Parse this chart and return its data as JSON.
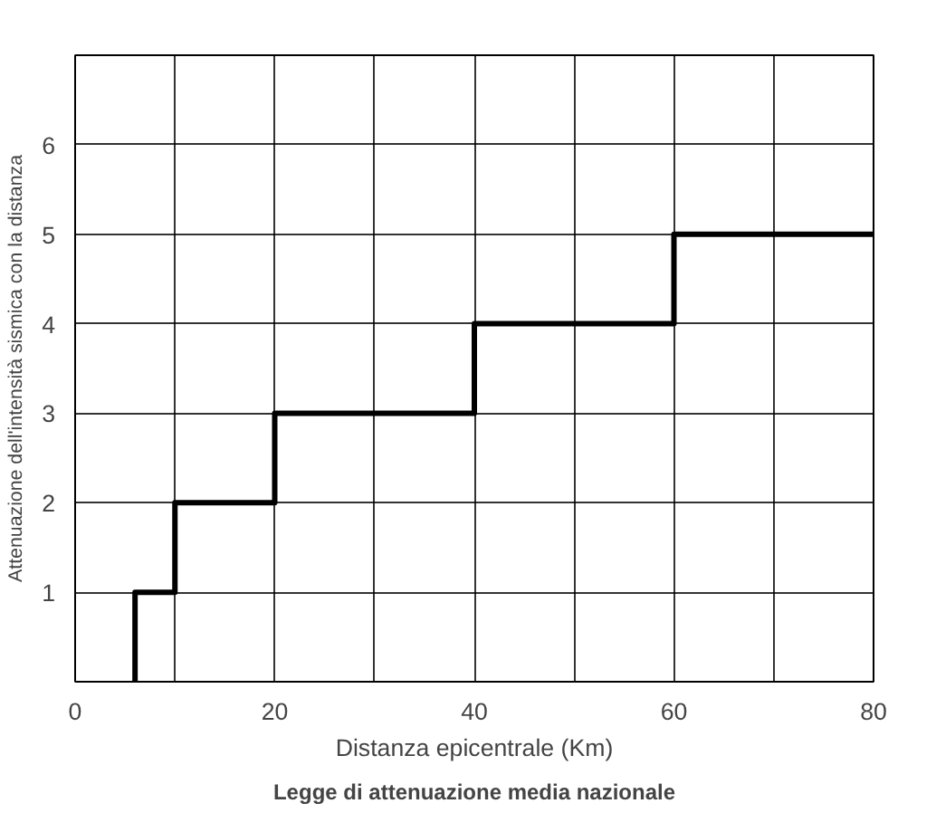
{
  "chart_data": {
    "type": "step",
    "title": "Legge di attenuazione media nazionale",
    "xlabel": "Distanza epicentrale (Km)",
    "ylabel": "Attenuazione dell'intensità sismica con la distanza",
    "x": [
      6,
      6,
      10,
      20,
      40,
      60,
      80
    ],
    "series": [
      {
        "color": "#000000",
        "values": [
          0,
          1,
          2,
          3,
          4,
          5,
          5
        ]
      }
    ],
    "xlim": [
      0,
      80
    ],
    "ylim": [
      0,
      7
    ],
    "xticks": [
      0,
      {
        "value": 10,
        "label": null
      },
      20,
      {
        "value": 30,
        "label": null
      },
      40,
      {
        "value": 50,
        "label": null
      },
      60,
      {
        "value": 70,
        "label": null
      },
      80
    ],
    "yticks": [
      {
        "value": 0,
        "label": null
      },
      1,
      2,
      3,
      4,
      5,
      6,
      {
        "value": 7,
        "label": null
      }
    ],
    "grid": true,
    "line_style": "solid"
  }
}
